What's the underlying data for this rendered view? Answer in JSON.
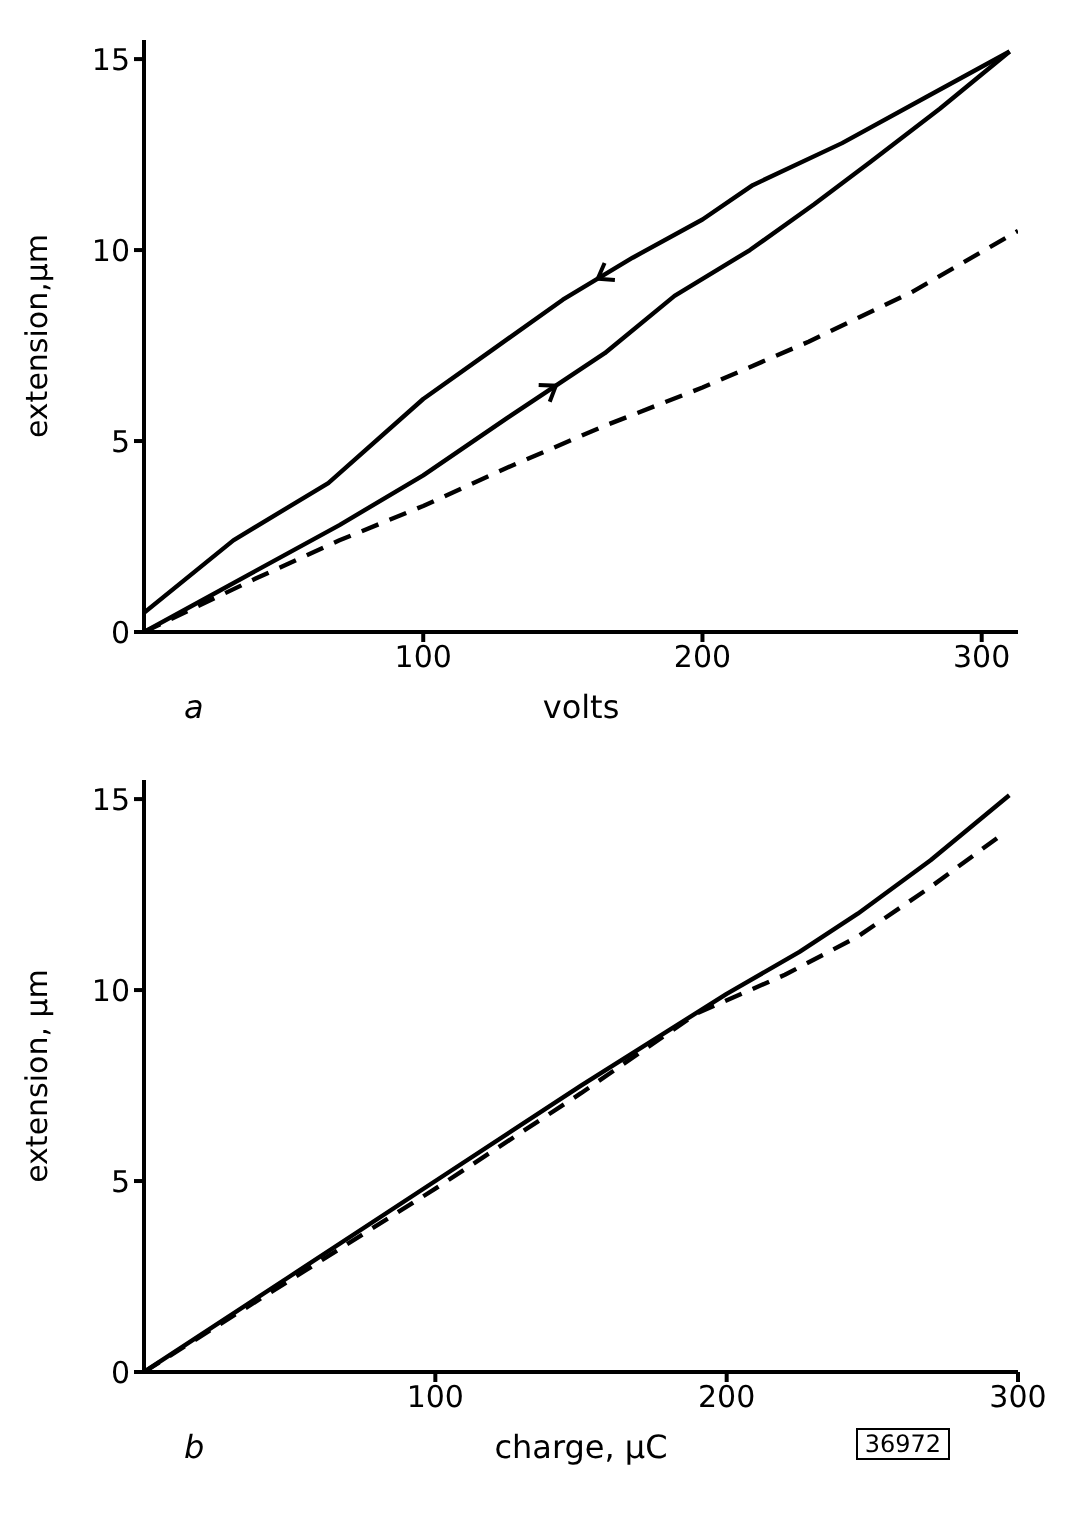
{
  "chart_data": [
    {
      "type": "line",
      "xlabel": "volts",
      "ylabel": "extension,μm",
      "xlim": [
        0,
        313
      ],
      "xticks": [
        100,
        200,
        300
      ],
      "ylim": [
        0,
        15.5
      ],
      "yticks": [
        0,
        5,
        10,
        15
      ],
      "annotations": [
        "a"
      ],
      "series": [
        {
          "color": "#000000",
          "line_style": "solid",
          "x": [
            0,
            20,
            40,
            70,
            100,
            130,
            165,
            190,
            217,
            240,
            260,
            285,
            310
          ],
          "values": [
            0,
            0.8,
            1.6,
            2.8,
            4.1,
            5.6,
            7.3,
            8.8,
            10.0,
            11.2,
            12.3,
            13.7,
            15.2
          ]
        },
        {
          "color": "#000000",
          "line_style": "solid",
          "x": [
            310,
            280,
            250,
            218,
            200,
            175,
            150,
            125,
            100,
            66,
            32,
            0
          ],
          "values": [
            15.2,
            14.0,
            12.8,
            11.7,
            10.8,
            9.8,
            8.7,
            7.4,
            6.1,
            3.9,
            2.4,
            0.5
          ]
        },
        {
          "color": "#000000",
          "line_style": "dashed",
          "x": [
            0,
            40,
            70,
            100,
            130,
            165,
            200,
            238,
            275,
            313
          ],
          "values": [
            0,
            1.4,
            2.4,
            3.3,
            4.3,
            5.4,
            6.4,
            7.6,
            8.9,
            10.5
          ]
        }
      ]
    },
    {
      "type": "line",
      "xlabel": "charge, μC",
      "ylabel": "extension, μm",
      "xlim": [
        0,
        300
      ],
      "xticks": [
        100,
        200,
        300
      ],
      "ylim": [
        0,
        15.5
      ],
      "yticks": [
        0,
        5,
        10,
        15
      ],
      "annotations": [
        "b",
        "36972"
      ],
      "series": [
        {
          "color": "#000000",
          "line_style": "solid",
          "x": [
            0,
            50,
            100,
            150,
            200,
            225,
            245,
            270,
            297
          ],
          "values": [
            0,
            2.5,
            5.0,
            7.5,
            9.9,
            11.0,
            12.0,
            13.4,
            15.1
          ]
        },
        {
          "color": "#000000",
          "line_style": "dashed",
          "x": [
            0,
            50,
            100,
            150,
            190,
            220,
            245,
            270,
            295
          ],
          "values": [
            0,
            2.4,
            4.8,
            7.3,
            9.4,
            10.4,
            11.4,
            12.7,
            14.1
          ]
        }
      ]
    }
  ]
}
